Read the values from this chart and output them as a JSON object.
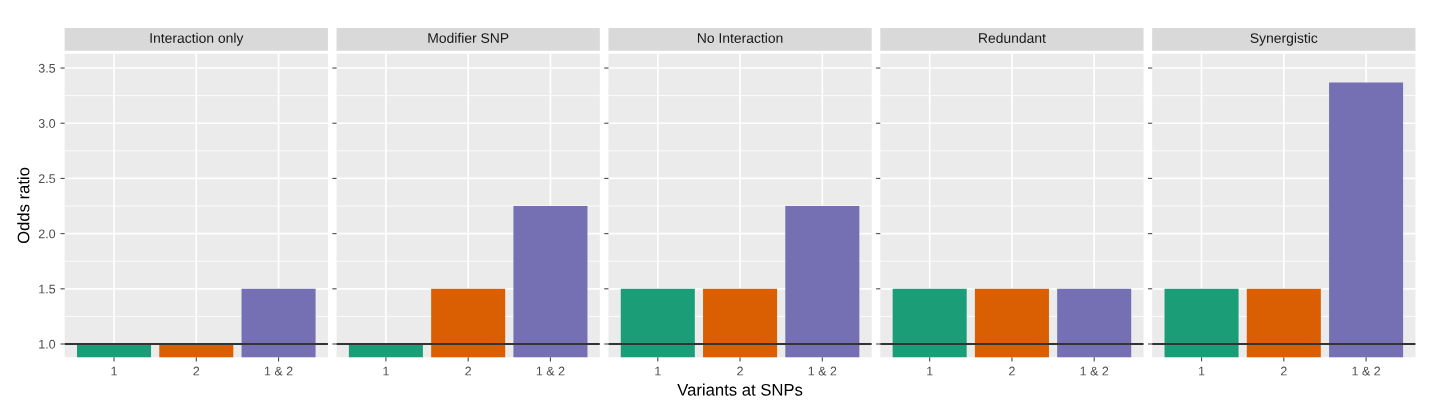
{
  "chart_data": [
    {
      "type": "bar",
      "title": "Interaction only",
      "ylabel": "Odds ratio",
      "categories": [
        "1",
        "2",
        "1 & 2"
      ],
      "values": [
        1,
        1,
        1.5
      ],
      "colors": [
        "#1b9e77",
        "#d95f02",
        "#7570b3"
      ],
      "ylim": [
        0.88,
        3.63
      ],
      "yticks": [
        {
          "value": 1,
          "label": "1.0"
        },
        1.5,
        {
          "value": 2,
          "label": "2.0"
        },
        2.5,
        {
          "value": 3,
          "label": "3.0"
        },
        3.5
      ],
      "grid": true,
      "ref_lines": [
        {
          "axis": "y",
          "value": 1,
          "label": null,
          "color": "#333333"
        }
      ]
    },
    {
      "type": "bar",
      "title": "Modifier SNP",
      "categories": [
        "1",
        "2",
        "1 & 2"
      ],
      "values": [
        1,
        1.5,
        2.25
      ],
      "colors": [
        "#1b9e77",
        "#d95f02",
        "#7570b3"
      ],
      "ylim": [
        0.88,
        3.63
      ],
      "yticks": [
        {
          "value": 1,
          "label": null
        },
        {
          "value": 1.5,
          "label": null
        },
        {
          "value": 2,
          "label": null
        },
        {
          "value": 2.5,
          "label": null
        },
        {
          "value": 3,
          "label": null
        },
        {
          "value": 3.5,
          "label": null
        }
      ],
      "tick_labels": "x",
      "grid": true,
      "ref_lines": [
        {
          "axis": "y",
          "value": 1,
          "label": null,
          "color": "#333333"
        }
      ]
    },
    {
      "type": "bar",
      "title": "No Interaction",
      "xlabel": "Variants at SNPs",
      "categories": [
        "1",
        "2",
        "1 & 2"
      ],
      "values": [
        1.5,
        1.5,
        2.25
      ],
      "colors": [
        "#1b9e77",
        "#d95f02",
        "#7570b3"
      ],
      "ylim": [
        0.88,
        3.63
      ],
      "yticks": [
        {
          "value": 1,
          "label": null
        },
        {
          "value": 1.5,
          "label": null
        },
        {
          "value": 2,
          "label": null
        },
        {
          "value": 2.5,
          "label": null
        },
        {
          "value": 3,
          "label": null
        },
        {
          "value": 3.5,
          "label": null
        }
      ],
      "tick_labels": "x",
      "grid": true,
      "ref_lines": [
        {
          "axis": "y",
          "value": 1,
          "label": null,
          "color": "#333333"
        }
      ]
    },
    {
      "type": "bar",
      "title": "Redundant",
      "categories": [
        "1",
        "2",
        "1 & 2"
      ],
      "values": [
        1.5,
        1.5,
        1.5
      ],
      "colors": [
        "#1b9e77",
        "#d95f02",
        "#7570b3"
      ],
      "ylim": [
        0.88,
        3.63
      ],
      "yticks": [
        {
          "value": 1,
          "label": null
        },
        {
          "value": 1.5,
          "label": null
        },
        {
          "value": 2,
          "label": null
        },
        {
          "value": 2.5,
          "label": null
        },
        {
          "value": 3,
          "label": null
        },
        {
          "value": 3.5,
          "label": null
        }
      ],
      "tick_labels": "x",
      "grid": true,
      "ref_lines": [
        {
          "axis": "y",
          "value": 1,
          "label": null,
          "color": "#333333"
        }
      ]
    },
    {
      "type": "bar",
      "title": "Synergistic",
      "categories": [
        "1",
        "2",
        "1 & 2"
      ],
      "values": [
        1.5,
        1.5,
        3.37
      ],
      "colors": [
        "#1b9e77",
        "#d95f02",
        "#7570b3"
      ],
      "ylim": [
        0.88,
        3.63
      ],
      "yticks": [
        {
          "value": 1,
          "label": null
        },
        {
          "value": 1.5,
          "label": null
        },
        {
          "value": 2,
          "label": null
        },
        {
          "value": 2.5,
          "label": null
        },
        {
          "value": 3,
          "label": null
        },
        {
          "value": 3.5,
          "label": null
        }
      ],
      "tick_labels": "x",
      "grid": true,
      "ref_lines": [
        {
          "axis": "y",
          "value": 1,
          "label": null,
          "color": "#333333"
        }
      ]
    }
  ]
}
